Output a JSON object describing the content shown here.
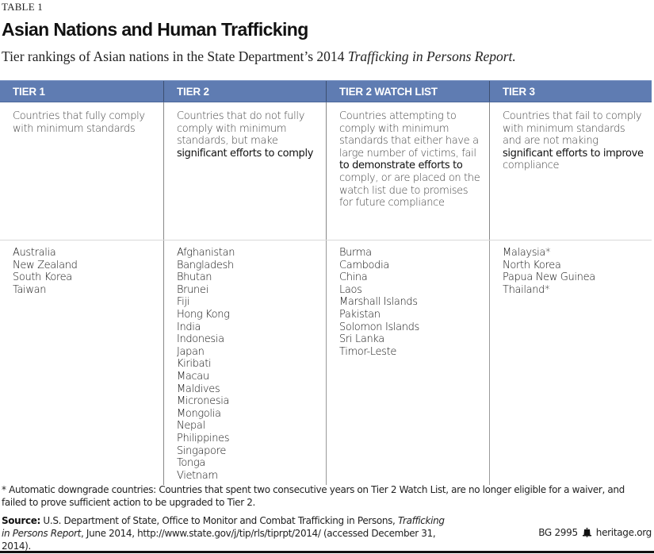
{
  "header": {
    "table_label": "TABLE 1",
    "title": "Asian Nations and Human Trafficking",
    "subtitle_prefix": "Tier rankings of Asian nations in the State Department’s 2014 ",
    "subtitle_italic": "Trafficking in Persons Report."
  },
  "table": {
    "columns": [
      {
        "header": "TIER 1",
        "desc_plain": "Countries that fully comply with minimum standards",
        "desc_bold": "",
        "desc_after": "",
        "countries": [
          "Australia",
          "New Zealand",
          "South Korea",
          "Taiwan"
        ]
      },
      {
        "header": "TIER 2",
        "desc_plain": "Countries that do not fully comply with minimum standards, but make ",
        "desc_bold": "significant efforts to comply",
        "desc_after": "",
        "countries": [
          "Afghanistan",
          "Bangladesh",
          "Bhutan",
          "Brunei",
          "Fiji",
          "Hong Kong",
          "India",
          "Indonesia",
          "Japan",
          "Kiribati",
          "Macau",
          "Maldives",
          "Micronesia",
          "Mongolia",
          "Nepal",
          "Philippines",
          "Singapore",
          "Tonga",
          "Vietnam"
        ]
      },
      {
        "header": "TIER 2 WATCH LIST",
        "desc_plain": "Countries attempting to comply with minimum standards that either have a large number of victims, fail ",
        "desc_bold": "to demonstrate efforts to",
        "desc_after": " comply, or are placed on the watch list due to promises for future compliance",
        "countries": [
          "Burma",
          "Cambodia",
          "China",
          "Laos",
          "Marshall Islands",
          "Pakistan",
          "Solomon Islands",
          "Sri Lanka",
          "Timor-Leste"
        ]
      },
      {
        "header": "TIER 3",
        "desc_plain": "Countries that fail to comply with minimum standards and are not making ",
        "desc_bold": "significant efforts to improve",
        "desc_after": " compliance",
        "countries": [
          "Malaysia*",
          "North Korea",
          "Papua New Guinea",
          "Thailand*"
        ]
      }
    ],
    "header_color": "#5f7cb2"
  },
  "footer": {
    "footnote": "* Automatic downgrade countries: Countries that spent two consecutive years on Tier 2 Watch List, are no longer eligible for a waiver, and failed to prove sufficient action to be upgraded to Tier 2.",
    "source_label": "Source:",
    "source_text_1": " U.S. Department of State, Office to Monitor and Combat Trafficking in Persons, ",
    "source_italic": "Trafficking in Persons Report",
    "source_text_2": ", June 2014, http://www.state.gov/j/tip/rls/tiprpt/2014/ (accessed December 31, 2014).",
    "report_id": "BG 2995",
    "logo_icon": "liberty-bell-icon",
    "site": "heritage.org"
  }
}
